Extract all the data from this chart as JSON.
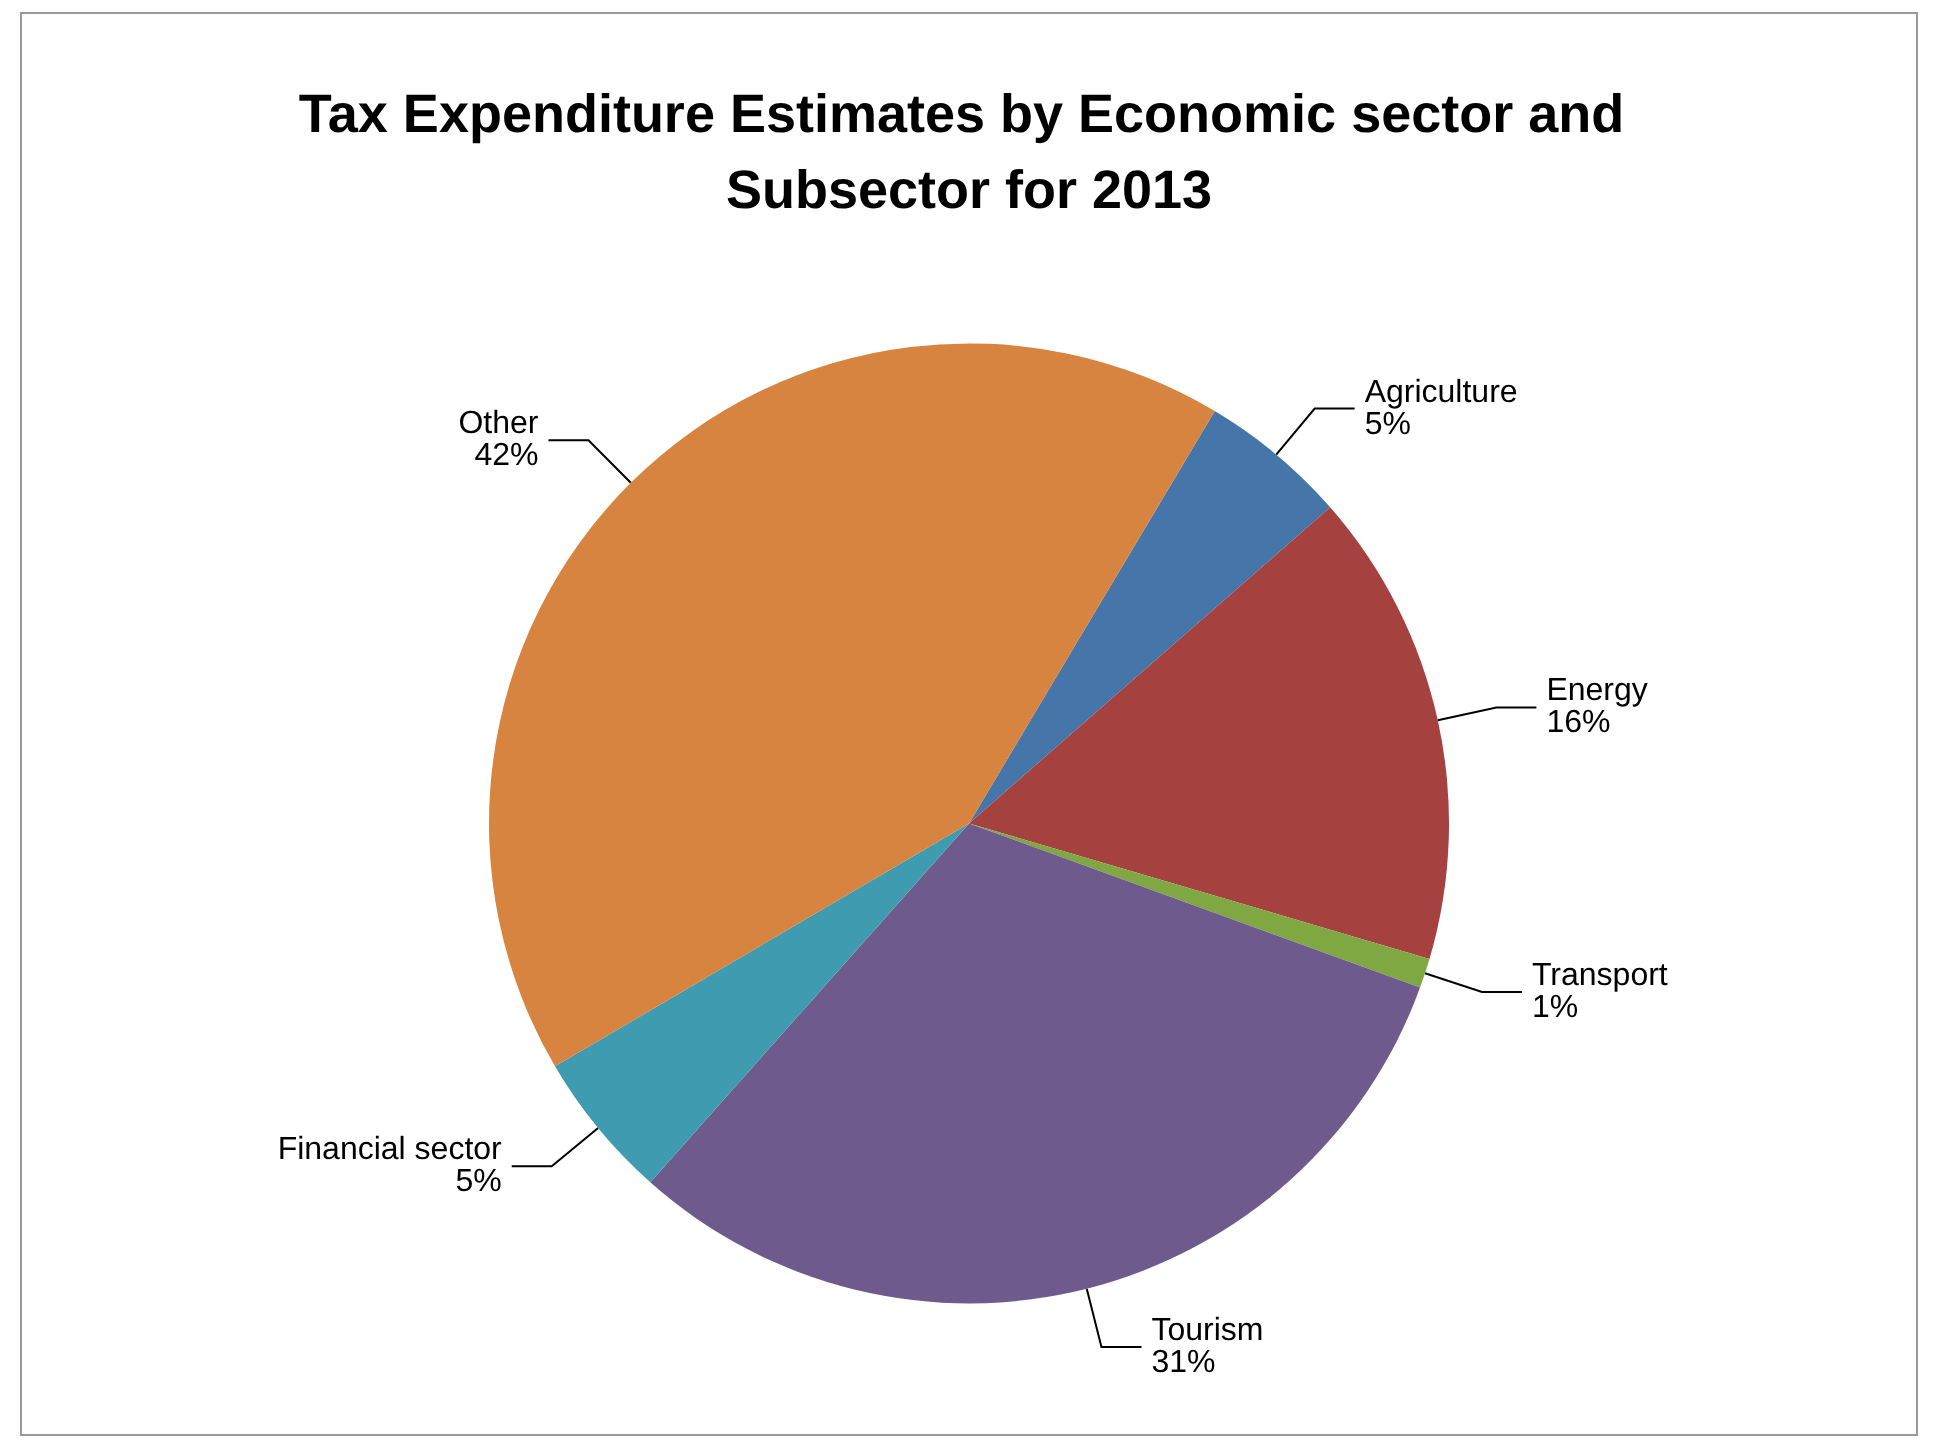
{
  "chart_data": {
    "type": "pie",
    "title": "Tax Expenditure Estimates by Economic sector and Subsector for 2013",
    "categories": [
      "Agriculture",
      "Energy",
      "Transport",
      "Tourism",
      "Financial sector",
      "Other"
    ],
    "values": [
      5,
      16,
      1,
      31,
      5,
      42
    ],
    "value_labels": [
      "5%",
      "16%",
      "1%",
      "31%",
      "5%",
      "42%"
    ],
    "colors": [
      "#4675aa",
      "#a5413f",
      "#7fa843",
      "#6e5a8c",
      "#3f9bb0",
      "#d6843f"
    ],
    "legend": false
  }
}
